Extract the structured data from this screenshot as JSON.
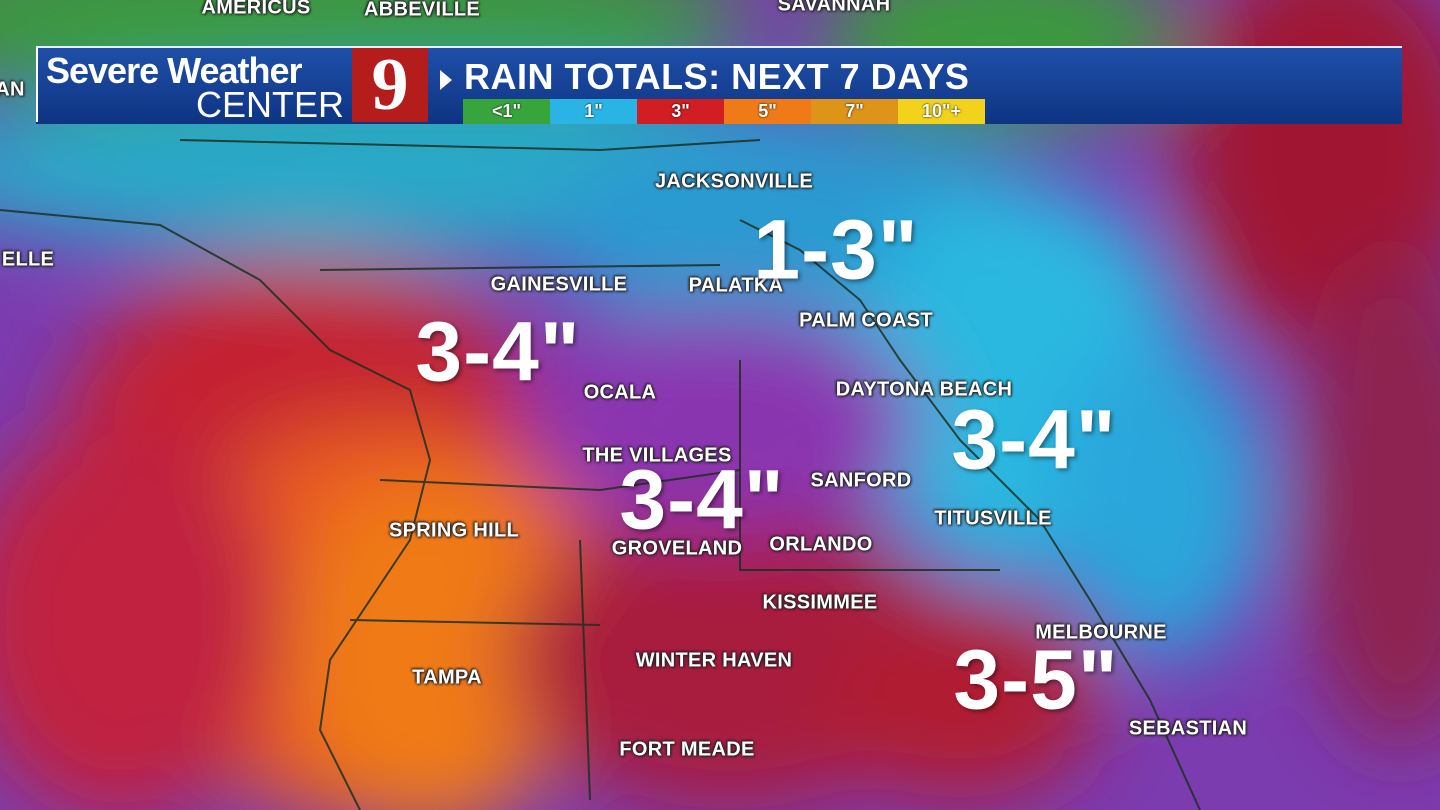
{
  "header": {
    "brand_line1": "Severe Weather",
    "brand_line2": "CENTER",
    "logo": "9",
    "title": "RAIN TOTALS: NEXT 7 DAYS"
  },
  "legend": [
    {
      "label": "<1\"",
      "color": "#38a43c"
    },
    {
      "label": "1\"",
      "color": "#2ab4e6"
    },
    {
      "label": "3\"",
      "color": "#d01e22"
    },
    {
      "label": "5\"",
      "color": "#f07a18"
    },
    {
      "label": "7\"",
      "color": "#de9418"
    },
    {
      "label": "10\"+",
      "color": "#f3d21c"
    }
  ],
  "cities": [
    "AMERICUS",
    "ABBEVILLE",
    "SAVANNAH",
    "AN",
    "ELLE",
    "JACKSONVILLE",
    "GAINESVILLE",
    "PALATKA",
    "PALM COAST",
    "OCALA",
    "DAYTONA BEACH",
    "THE VILLAGES",
    "SANFORD",
    "TITUSVILLE",
    "SPRING HILL",
    "GROVELAND",
    "ORLANDO",
    "KISSIMMEE",
    "MELBOURNE",
    "WINTER HAVEN",
    "TAMPA",
    "FORT MEADE",
    "SEBASTIAN"
  ],
  "totals": [
    "1-3\"",
    "3-4\"",
    "3-4\"",
    "3-4\"",
    "3-5\""
  ]
}
